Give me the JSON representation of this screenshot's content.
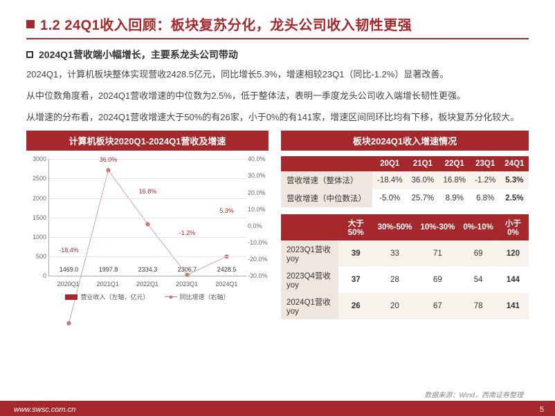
{
  "title": "1.2 24Q1收入回顾：板块复苏分化，龙头公司收入韧性更强",
  "subtitle": "2024Q1营收端小幅增长，主要系龙头公司带动",
  "paragraphs": [
    "2024Q1，计算机板块整体实现营收2428.5亿元，同比增长5.3%，增速相较23Q1（同比-1.2%）显著改善。",
    "从中位数角度看，2024Q1营收增速的中位数为2.5%，低于整体法，表明一季度龙头公司收入端增长韧性更强。",
    "从增速的分布看，2024Q1营收增速大于50%的有26家，小于0%的有141家，增速区间同环比均有下移，板块复苏分化较大。"
  ],
  "left_header": "计算机板块2020Q1-2024Q1营收及增速",
  "right_header": "板块2024Q1收入增速情况",
  "chart": {
    "type": "bar+line",
    "categories": [
      "2020Q1",
      "2021Q1",
      "2022Q1",
      "2023Q1",
      "2024Q1"
    ],
    "bar_values": [
      1469.0,
      1997.8,
      2334.3,
      2306.7,
      2428.5
    ],
    "bar_labels": [
      "1469.0",
      "1997.8",
      "2334.3",
      "2306.7",
      "2428.5"
    ],
    "bar_color": "#a4282c",
    "bar_ylim": [
      0,
      3000
    ],
    "bar_ytick_step": 500,
    "line_values": [
      -18.4,
      36.0,
      16.8,
      -1.2,
      5.3
    ],
    "line_labels": [
      "-18.4%",
      "36.0%",
      "16.8%",
      "-1.2%",
      "5.3%"
    ],
    "line_color": "#c77d6e",
    "line_ylim": [
      -30,
      40
    ],
    "line_ytick_step": 10,
    "legend_bar": "营业收入（左轴，亿元）",
    "legend_line": "同比增速（右轴）",
    "background_color": "#ffffff",
    "grid_color": "#e6e6e6"
  },
  "table1": {
    "corner": "",
    "columns": [
      "20Q1",
      "21Q1",
      "22Q1",
      "23Q1",
      "24Q1"
    ],
    "rows": [
      {
        "label": "营收增速（整体法）",
        "cells": [
          "-18.4%",
          "36.0%",
          "16.8%",
          "-1.2%",
          "5.3%"
        ],
        "bold_last": true
      },
      {
        "label": "营收增速（中位数法）",
        "cells": [
          "-5.0%",
          "25.7%",
          "8.9%",
          "6.8%",
          "2.5%"
        ],
        "bold_last": true
      }
    ]
  },
  "table2": {
    "corner": "",
    "columns": [
      "大于50%",
      "30%-50%",
      "10%-30%",
      "0%-10%",
      "小于0%"
    ],
    "rows": [
      {
        "label": "2023Q1营收yoy",
        "cells": [
          "39",
          "33",
          "71",
          "69",
          "120"
        ],
        "bold_idx": [
          0,
          4
        ]
      },
      {
        "label": "2023Q4营收yoy",
        "cells": [
          "37",
          "28",
          "69",
          "54",
          "144"
        ],
        "bold_idx": [
          0,
          4
        ]
      },
      {
        "label": "2024Q1营收yoy",
        "cells": [
          "26",
          "20",
          "67",
          "78",
          "141"
        ],
        "bold_idx": [
          0,
          4
        ]
      }
    ]
  },
  "footer_url": "www.swsc.com.cn",
  "footer_source": "数据来源：Wind，西南证券整理",
  "page_number": "5",
  "colors": {
    "accent": "#a4282c",
    "text": "#444444",
    "row_alt": "#efe7df"
  }
}
